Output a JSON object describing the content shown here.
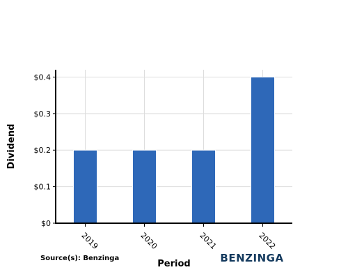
{
  "chart_data": {
    "type": "bar",
    "categories": [
      "2019",
      "2020",
      "2021",
      "2022"
    ],
    "values": [
      0.2,
      0.2,
      0.2,
      0.4
    ],
    "title": "",
    "xlabel": "Period",
    "ylabel": "Dividend",
    "ylim": [
      0,
      0.42
    ],
    "yticks": [
      0,
      0.1,
      0.2,
      0.3,
      0.4
    ],
    "ytick_labels": [
      "$0",
      "$0.1",
      "$0.2",
      "$0.3",
      "$0.4"
    ],
    "grid": true,
    "legend": "none",
    "bar_color": "#2e68b8"
  },
  "footer": {
    "source": "Source(s): Benzinga",
    "brand": "BENZINGA"
  }
}
